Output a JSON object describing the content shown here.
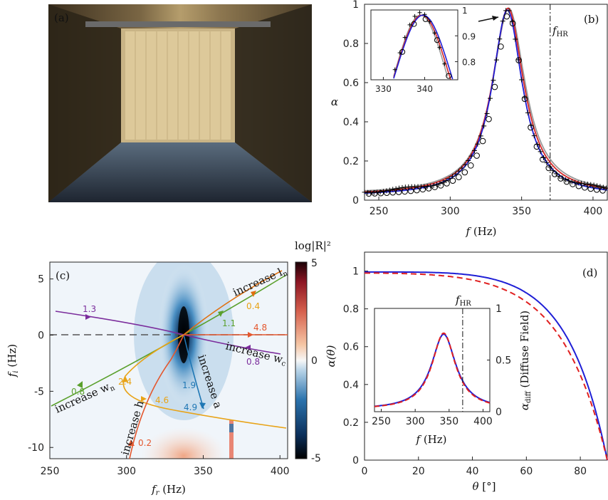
{
  "chart_data": [
    {
      "panel": "(a)",
      "type": "photo",
      "description_label": "(a)"
    },
    {
      "panel": "(b)",
      "type": "line",
      "xlabel": "f",
      "xunit": "(Hz)",
      "ylabel": "α",
      "xlim": [
        240,
        410
      ],
      "ylim": [
        0,
        1
      ],
      "xticks": [
        "250",
        "300",
        "350",
        "400"
      ],
      "yticks": [
        "0",
        "0.2",
        "0.4",
        "0.6",
        "0.8",
        "1"
      ],
      "vline": {
        "label": "f",
        "sub": "HR",
        "x": 370
      },
      "peak_f": 340,
      "peak_alpha": 0.98,
      "halfwidth_f": 13,
      "series": [
        {
          "name": "",
          "color": "#d62728",
          "style": "line"
        },
        {
          "name": "",
          "color": "#1f1fd6",
          "style": "line"
        },
        {
          "name": "",
          "color": "#999999",
          "style": "line"
        },
        {
          "name": "",
          "color": "#000000",
          "style": "plus"
        },
        {
          "name": "",
          "color": "#000000",
          "style": "circle"
        }
      ],
      "inset": {
        "xlim": [
          327,
          348
        ],
        "ylim": [
          0.73,
          1.0
        ],
        "xticks": [
          "330",
          "340"
        ],
        "yticks": [
          "0.8",
          "0.9",
          "1"
        ]
      }
    },
    {
      "panel": "(c)",
      "type": "heatmap",
      "xlabel": "f",
      "xsub": "r",
      "xunit": "(Hz)",
      "ylabel": "f",
      "ysub": "i",
      "yunit": "(Hz)",
      "xlim": [
        250,
        405
      ],
      "ylim": [
        -11,
        6.5
      ],
      "xticks": [
        "250",
        "300",
        "350",
        "400"
      ],
      "yticks": [
        "5",
        "0",
        "-5",
        "-10"
      ],
      "colorbar": {
        "label": "log|R|²",
        "ticks": [
          "5",
          "0",
          "-5"
        ],
        "range": [
          -5,
          5
        ]
      },
      "zero_point": [
        338,
        0
      ],
      "trajectories": [
        {
          "label": "increase l",
          "sub": "n",
          "color": "#e07010",
          "numbers": [
            "0.4",
            "1.1"
          ]
        },
        {
          "label": "increase w",
          "sub": "c",
          "color": "#7b2d9c",
          "numbers": [
            "1.3",
            "0.8"
          ]
        },
        {
          "label": "increase w",
          "sub": "n",
          "color": "#5aa02c",
          "numbers": [
            "0.8"
          ]
        },
        {
          "label": "increase a",
          "sub": "",
          "color": "#1f77b4",
          "numbers": [
            "1.9",
            "4.9"
          ]
        },
        {
          "label": "increase h",
          "sub": "",
          "color": "#e8a317",
          "numbers": [
            "2.4",
            "4.6"
          ]
        },
        {
          "label": "",
          "sub": "",
          "color": "#e4572e",
          "numbers": [
            "4.8",
            "0.2"
          ]
        }
      ]
    },
    {
      "panel": "(d)",
      "type": "line",
      "xlabel": "θ",
      "xunit": "[°]",
      "ylabel": "α(θ)",
      "xlim": [
        0,
        90
      ],
      "ylim": [
        0,
        1.1
      ],
      "xticks": [
        "0",
        "20",
        "40",
        "60",
        "80"
      ],
      "yticks": [
        "0",
        "0.2",
        "0.4",
        "0.6",
        "0.8",
        "1"
      ],
      "series": [
        {
          "name": "",
          "color": "#1f1fd6",
          "style": "solid"
        },
        {
          "name": "",
          "color": "#e02020",
          "style": "dashed"
        }
      ],
      "inset": {
        "xlabel": "f",
        "xunit": "(Hz)",
        "ylabel": "α",
        "ysub": "diff",
        "ynote": "(Diffuse Field)",
        "xlim": [
          240,
          410
        ],
        "ylim": [
          0,
          1
        ],
        "xticks": [
          "250",
          "300",
          "350",
          "400"
        ],
        "yticks": [
          "0",
          "0.5",
          "1"
        ],
        "vline": {
          "label": "f",
          "sub": "HR",
          "x": 370
        }
      }
    }
  ]
}
